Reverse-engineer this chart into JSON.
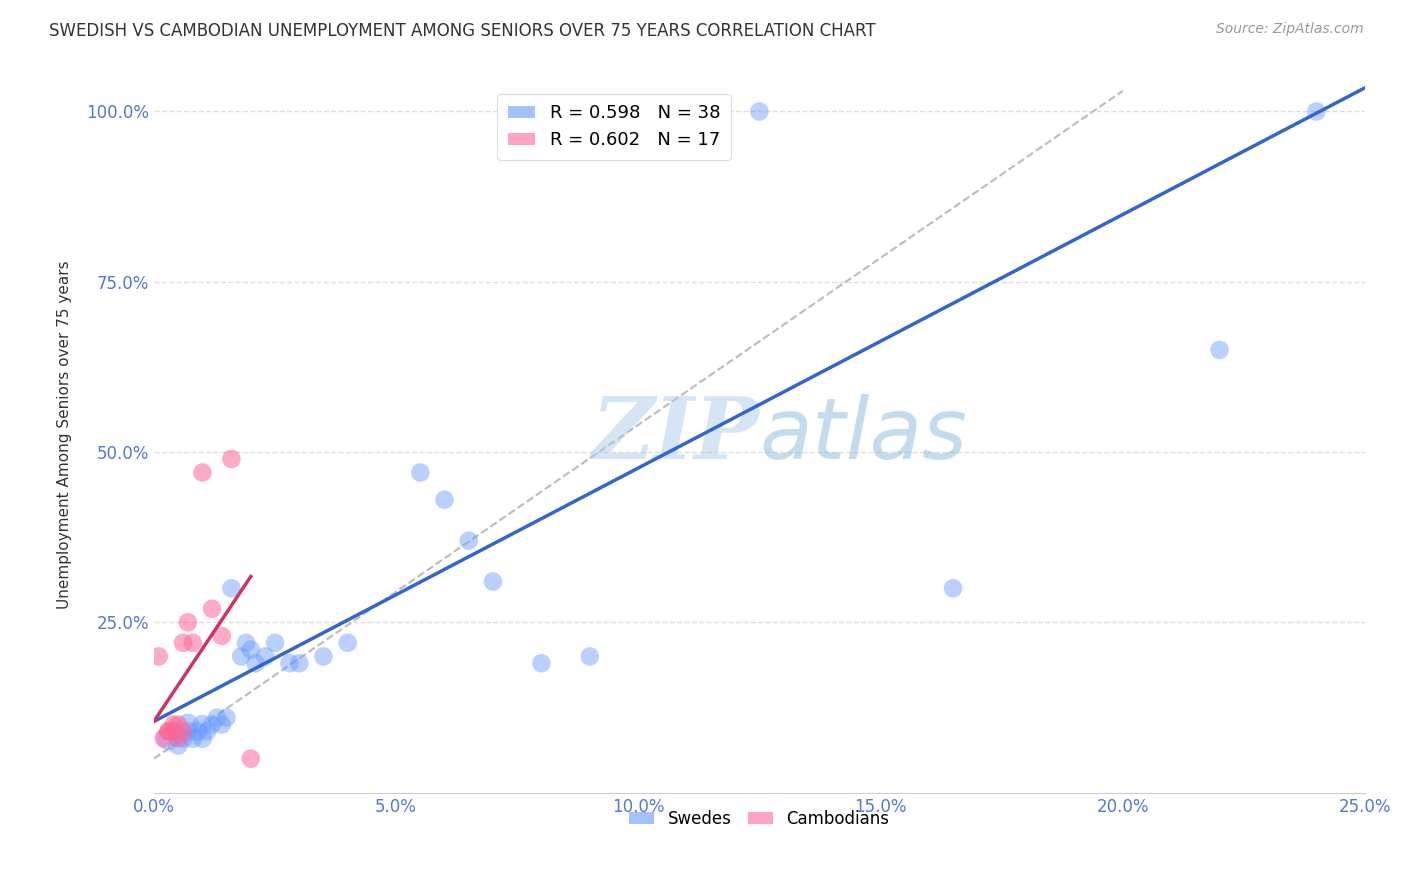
{
  "title": "SWEDISH VS CAMBODIAN UNEMPLOYMENT AMONG SENIORS OVER 75 YEARS CORRELATION CHART",
  "source": "Source: ZipAtlas.com",
  "ylabel": "Unemployment Among Seniors over 75 years",
  "xlim": [
    0.0,
    0.25
  ],
  "ylim": [
    0.0,
    1.05
  ],
  "xticks": [
    0.0,
    0.05,
    0.1,
    0.15,
    0.2,
    0.25
  ],
  "yticks": [
    0.25,
    0.5,
    0.75,
    1.0
  ],
  "xtick_labels": [
    "0.0%",
    "5.0%",
    "10.0%",
    "15.0%",
    "20.0%",
    "25.0%"
  ],
  "ytick_labels": [
    "25.0%",
    "50.0%",
    "75.0%",
    "100.0%"
  ],
  "swedes_x": [
    0.003,
    0.004,
    0.005,
    0.006,
    0.007,
    0.007,
    0.008,
    0.009,
    0.01,
    0.01,
    0.011,
    0.012,
    0.013,
    0.014,
    0.015,
    0.016,
    0.018,
    0.019,
    0.02,
    0.021,
    0.023,
    0.025,
    0.028,
    0.03,
    0.035,
    0.04,
    0.055,
    0.06,
    0.065,
    0.07,
    0.08,
    0.09,
    0.1,
    0.11,
    0.125,
    0.165,
    0.22,
    0.24
  ],
  "swedes_y": [
    0.08,
    0.09,
    0.07,
    0.08,
    0.1,
    0.09,
    0.08,
    0.09,
    0.08,
    0.1,
    0.09,
    0.1,
    0.11,
    0.1,
    0.11,
    0.3,
    0.2,
    0.22,
    0.21,
    0.19,
    0.2,
    0.22,
    0.19,
    0.19,
    0.2,
    0.22,
    0.47,
    0.43,
    0.37,
    0.31,
    0.19,
    0.2,
    1.0,
    1.0,
    1.0,
    0.3,
    0.65,
    1.0
  ],
  "swedes_sizes": [
    300,
    200,
    200,
    200,
    250,
    200,
    200,
    200,
    200,
    200,
    180,
    180,
    180,
    180,
    180,
    180,
    180,
    180,
    180,
    180,
    180,
    180,
    180,
    180,
    180,
    180,
    180,
    180,
    180,
    180,
    180,
    180,
    180,
    180,
    180,
    180,
    180,
    180
  ],
  "cambodians_x": [
    0.001,
    0.002,
    0.003,
    0.003,
    0.004,
    0.004,
    0.005,
    0.005,
    0.006,
    0.006,
    0.007,
    0.008,
    0.01,
    0.012,
    0.014,
    0.016,
    0.02
  ],
  "cambodians_y": [
    0.2,
    0.08,
    0.09,
    0.09,
    0.1,
    0.09,
    0.08,
    0.1,
    0.09,
    0.22,
    0.25,
    0.22,
    0.47,
    0.27,
    0.23,
    0.49,
    0.05
  ],
  "cambodians_sizes": [
    180,
    180,
    180,
    180,
    180,
    180,
    180,
    180,
    180,
    180,
    180,
    180,
    180,
    180,
    180,
    180,
    180
  ],
  "swede_color": "#6699FF",
  "cambodian_color": "#FF6699",
  "swede_line_color": "#3366CC",
  "cambodian_line_color": "#CC3366",
  "diagonal_color": "#BBBBBB",
  "legend_r_swede": "R = 0.598",
  "legend_n_swede": "N = 38",
  "legend_r_camb": "R = 0.602",
  "legend_n_camb": "N = 17",
  "watermark1": "ZIP",
  "watermark2": "atlas",
  "background_color": "#FFFFFF",
  "grid_color": "#DDDDDD",
  "tick_color": "#5577CC",
  "title_color": "#333333",
  "source_color": "#999999",
  "ylabel_color": "#333333"
}
